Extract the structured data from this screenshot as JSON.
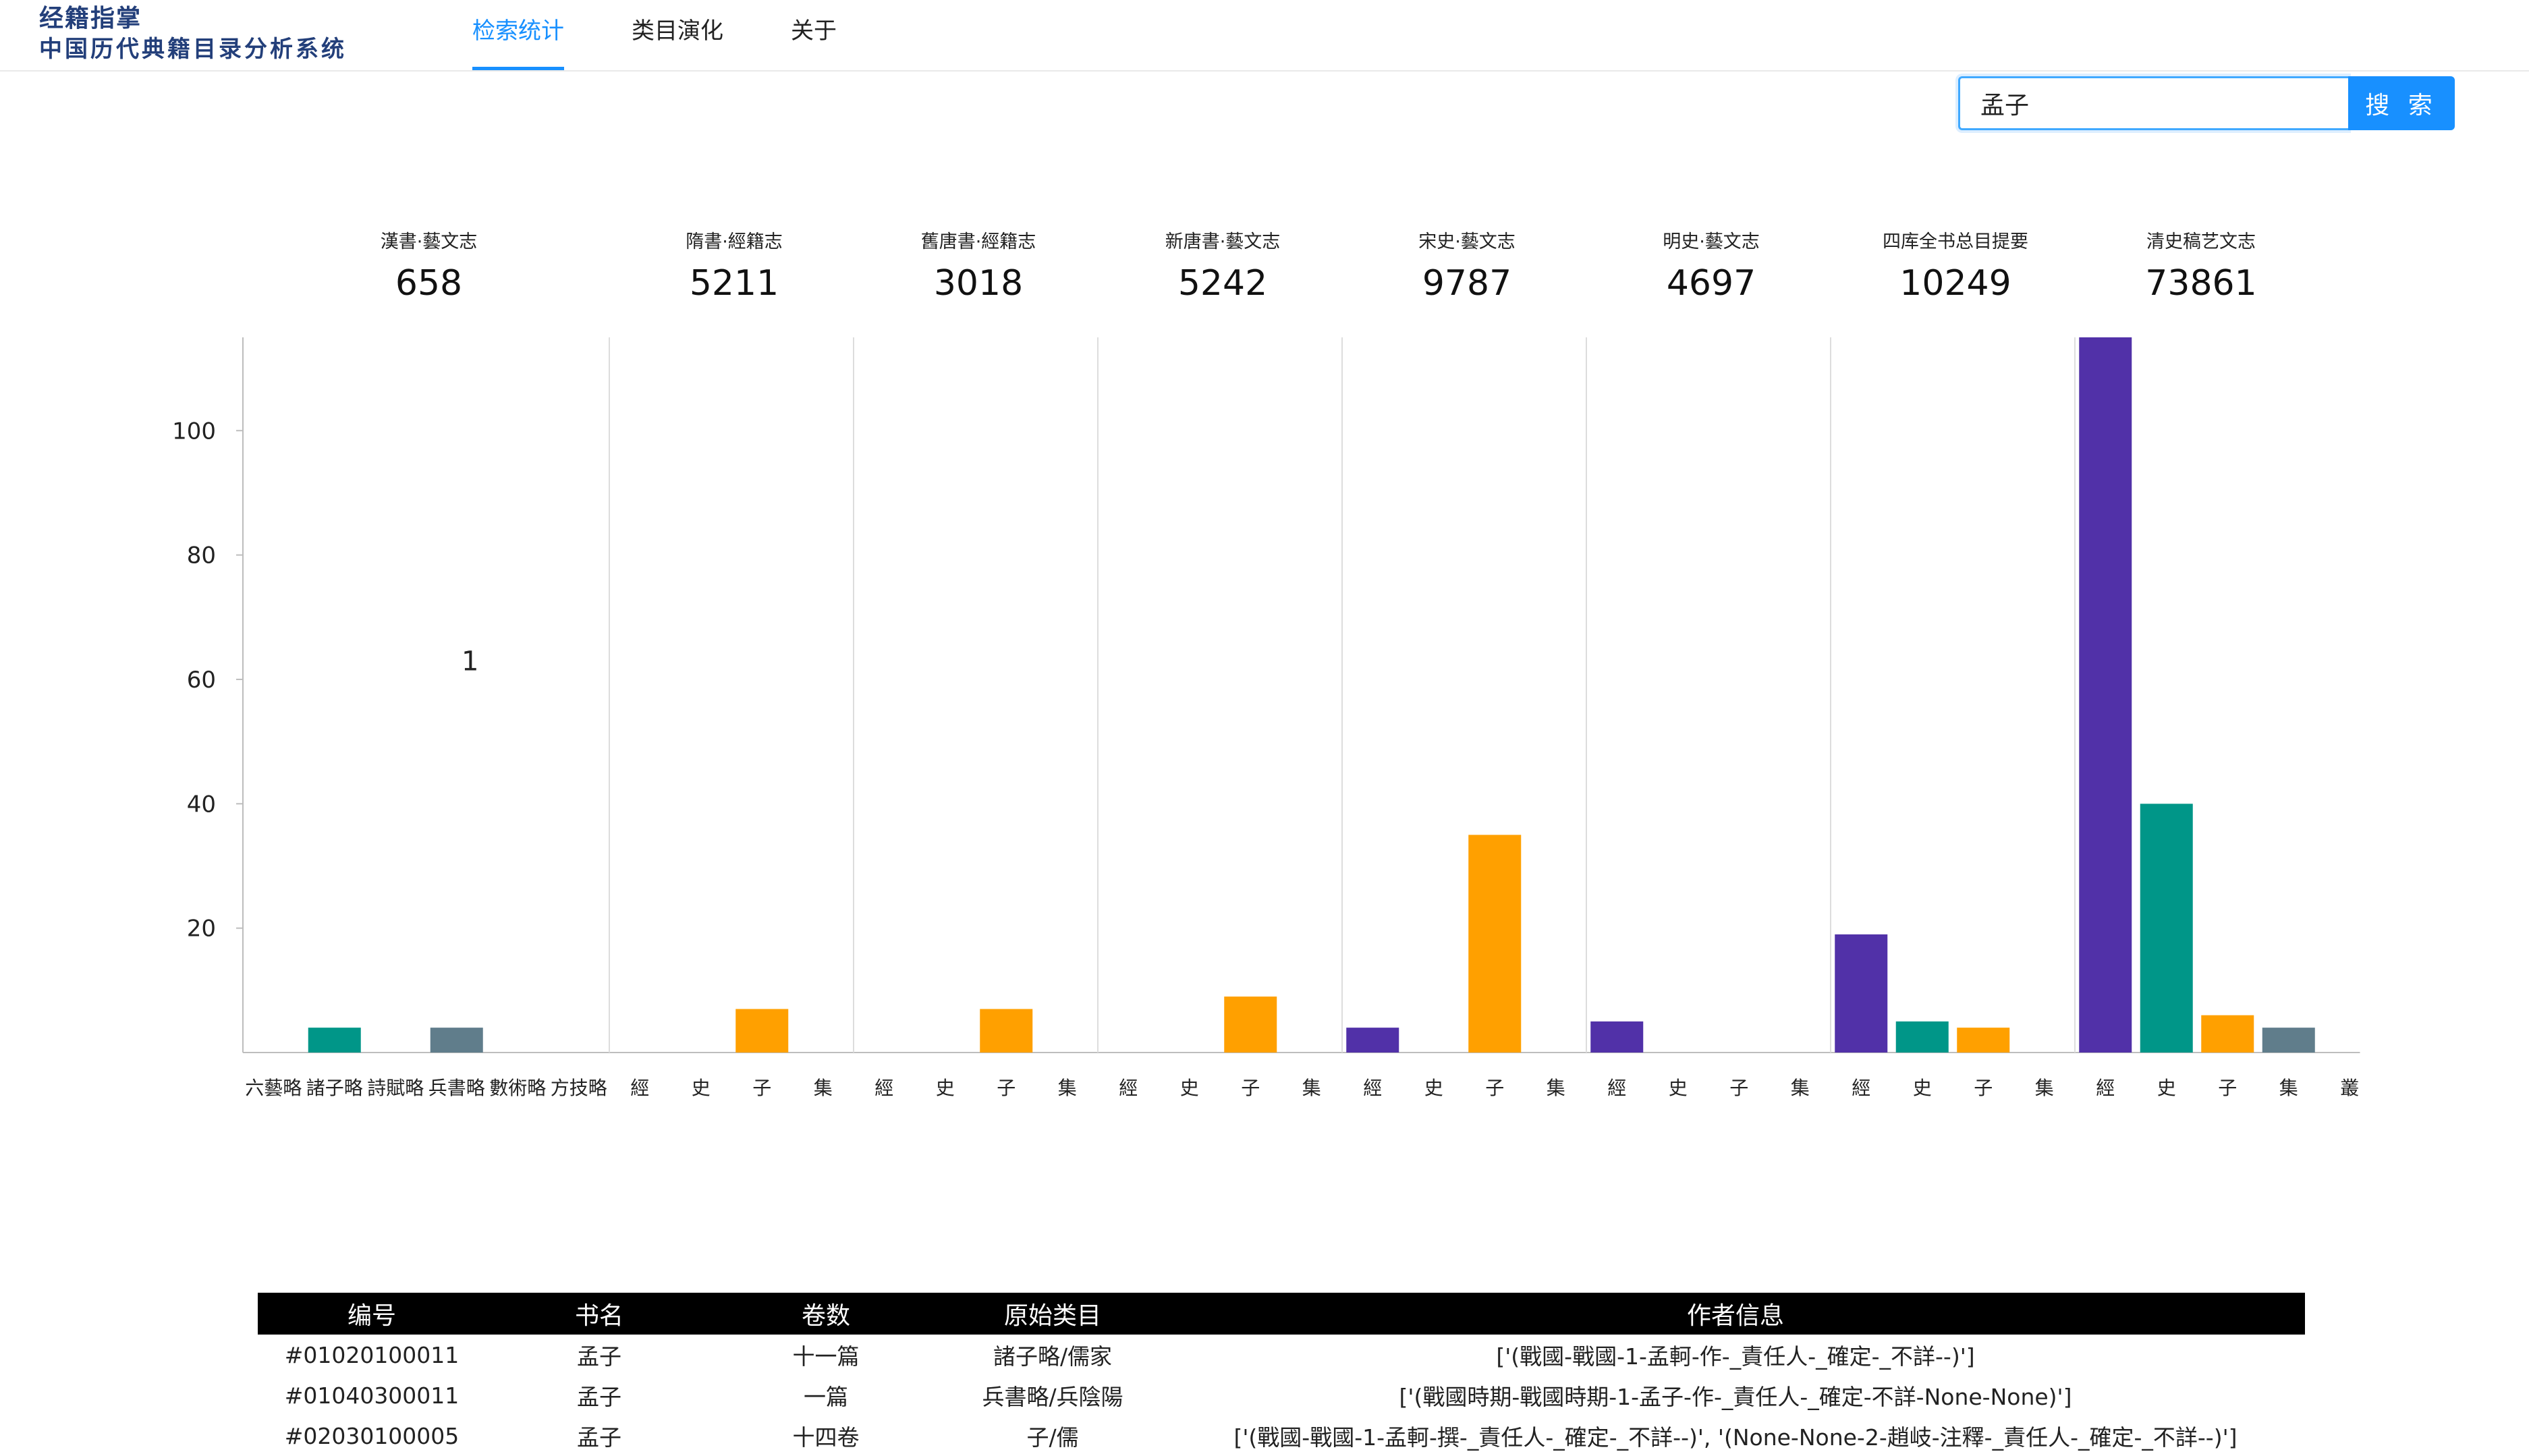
{
  "header": {
    "logo_line1": "经籍指掌",
    "logo_line2": "中国历代典籍目录分析系统",
    "nav": [
      {
        "label": "检索统计",
        "active": true
      },
      {
        "label": "类目演化",
        "active": false
      },
      {
        "label": "关于",
        "active": false
      }
    ]
  },
  "search": {
    "value": "孟子",
    "button_label": "搜 索"
  },
  "colors": {
    "accent": "#1890ff",
    "jing": "#5131a8",
    "shi": "#009688",
    "zi": "#ffa000",
    "ji": "#607d8b"
  },
  "chart_data": {
    "type": "bar",
    "ylim": [
      0,
      115
    ],
    "yticks": [
      20,
      40,
      60,
      80,
      100
    ],
    "annotation": {
      "text": "1",
      "category_index": 3,
      "y": 63
    },
    "groups": [
      {
        "title": "漢書·藝文志",
        "total": "658",
        "categories": [
          "六藝略",
          "諸子略",
          "詩賦略",
          "兵書略",
          "數術略",
          "方技略"
        ],
        "values": [
          0,
          4,
          0,
          4,
          0,
          0
        ],
        "color_keys": [
          "jing",
          "shi",
          "zi",
          "ji",
          "jing",
          "jing"
        ]
      },
      {
        "title": "隋書·經籍志",
        "total": "5211",
        "categories": [
          "經",
          "史",
          "子",
          "集"
        ],
        "values": [
          0,
          0,
          7,
          0
        ],
        "color_keys": [
          "jing",
          "shi",
          "zi",
          "ji"
        ]
      },
      {
        "title": "舊唐書·經籍志",
        "total": "3018",
        "categories": [
          "經",
          "史",
          "子",
          "集"
        ],
        "values": [
          0,
          0,
          7,
          0
        ],
        "color_keys": [
          "jing",
          "shi",
          "zi",
          "ji"
        ]
      },
      {
        "title": "新唐書·藝文志",
        "total": "5242",
        "categories": [
          "經",
          "史",
          "子",
          "集"
        ],
        "values": [
          0,
          0,
          9,
          0
        ],
        "color_keys": [
          "jing",
          "shi",
          "zi",
          "ji"
        ]
      },
      {
        "title": "宋史·藝文志",
        "total": "9787",
        "categories": [
          "經",
          "史",
          "子",
          "集"
        ],
        "values": [
          4,
          0,
          35,
          0
        ],
        "color_keys": [
          "jing",
          "shi",
          "zi",
          "ji"
        ]
      },
      {
        "title": "明史·藝文志",
        "total": "4697",
        "categories": [
          "經",
          "史",
          "子",
          "集"
        ],
        "values": [
          5,
          0,
          0,
          0
        ],
        "color_keys": [
          "jing",
          "shi",
          "zi",
          "ji"
        ]
      },
      {
        "title": "四库全书总目提要",
        "total": "10249",
        "categories": [
          "經",
          "史",
          "子",
          "集"
        ],
        "values": [
          19,
          5,
          4,
          0
        ],
        "color_keys": [
          "jing",
          "shi",
          "zi",
          "ji"
        ]
      },
      {
        "title": "清史稿艺文志",
        "total": "73861",
        "categories": [
          "經",
          "史",
          "子",
          "集",
          "叢"
        ],
        "values": [
          117,
          40,
          6,
          4,
          0
        ],
        "color_keys": [
          "jing",
          "shi",
          "zi",
          "ji",
          "jing"
        ]
      }
    ]
  },
  "table": {
    "headers": [
      "编号",
      "书名",
      "卷数",
      "原始类目",
      "作者信息"
    ],
    "rows": [
      [
        "#01020100011",
        "孟子",
        "十一篇",
        "諸子略/儒家",
        "['(戰國-戰國-1-孟軻-作-_責任人-_確定-_不詳--)']"
      ],
      [
        "#01040300011",
        "孟子",
        "一篇",
        "兵書略/兵陰陽",
        "['(戰國時期-戰國時期-1-孟子-作-_責任人-_確定-不詳-None-None)']"
      ],
      [
        "#02030100005",
        "孟子",
        "十四卷",
        "子/儒",
        "['(戰國-戰國-1-孟軻-撰-_責任人-_確定-_不詳--)', '(None-None-2-趙岐-注釋-_責任人-_確定-_不詳--)']"
      ]
    ]
  }
}
